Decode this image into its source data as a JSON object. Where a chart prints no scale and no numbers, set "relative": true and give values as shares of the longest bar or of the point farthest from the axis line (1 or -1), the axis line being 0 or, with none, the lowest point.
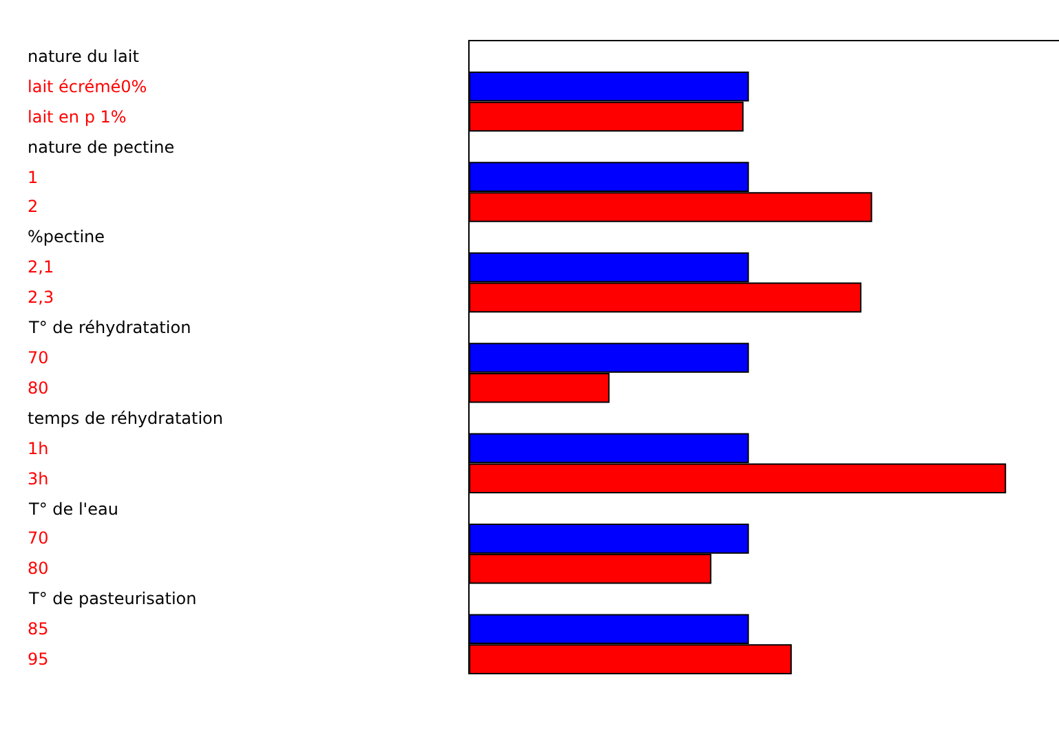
{
  "chart_data": {
    "type": "bar",
    "orientation": "horizontal",
    "relative": true,
    "categories": [
      "nature du lait",
      "lait écrémé0%",
      "lait en p 1%",
      "nature de pectine",
      "1",
      "2",
      "%pectine",
      "2,1",
      "2,3",
      "T° de réhydratation",
      "70",
      "80",
      "temps de réhydratation",
      "1h",
      "3h",
      "T° de l'eau",
      "70",
      "80",
      "T° de pasteurisation",
      "85",
      "95"
    ],
    "values": [
      null,
      0.52,
      0.51,
      null,
      0.52,
      0.75,
      null,
      0.52,
      0.73,
      null,
      0.52,
      0.26,
      null,
      0.52,
      1,
      null,
      0.52,
      0.45,
      null,
      0.52,
      0.6
    ],
    "colors": [
      "#0000ff",
      "#0000ff",
      "#ff0000",
      "#0000ff",
      "#0000ff",
      "#ff0000",
      "#0000ff",
      "#0000ff",
      "#ff0000",
      "#0000ff",
      "#0000ff",
      "#ff0000",
      "#0000ff",
      "#0000ff",
      "#ff0000",
      "#0000ff",
      "#0000ff",
      "#ff0000",
      "#0000ff",
      "#0000ff",
      "#ff0000"
    ],
    "legend": false
  }
}
